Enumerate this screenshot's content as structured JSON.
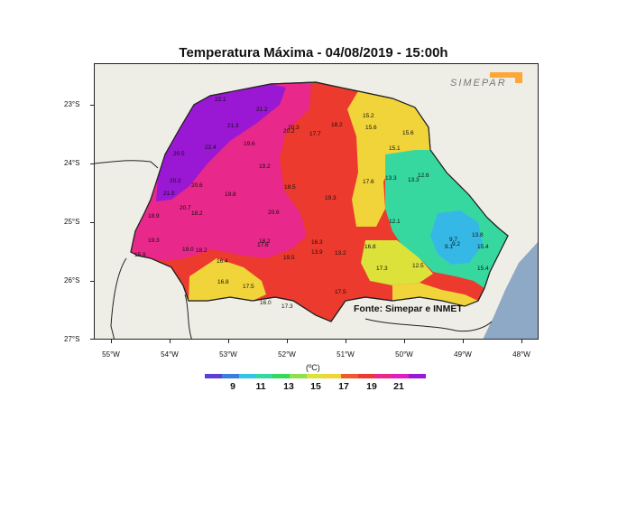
{
  "title": "Temperatura Máxima - 04/08/2019 - 15:00h",
  "source_text": "Fonte: Simepar e INMET",
  "logo_text": "SIMEPAR",
  "unit_label": "(ºC)",
  "lat_labels": [
    "23°S",
    "24°S",
    "25°S",
    "26°S",
    "27°S"
  ],
  "lon_labels": [
    "55°W",
    "54°W",
    "53°W",
    "52°W",
    "51°W",
    "50°W",
    "49°W",
    "48°W"
  ],
  "colorbar": {
    "ticks": [
      "9",
      "11",
      "13",
      "15",
      "17",
      "19",
      "21"
    ],
    "colors": [
      "#5b3fd6",
      "#3a7fe0",
      "#35c3e6",
      "#37d8a0",
      "#36d85c",
      "#8fe04a",
      "#dce23a",
      "#f0d43a",
      "#ef5a2c",
      "#ec3a2e",
      "#e8288a",
      "#e01fc0",
      "#9a17d4"
    ]
  },
  "station_values": [
    {
      "value": "22.1",
      "zone": "purple"
    },
    {
      "value": "21.2",
      "zone": "purple"
    },
    {
      "value": "21.3",
      "zone": "magenta"
    },
    {
      "value": "19.6",
      "zone": "magenta"
    },
    {
      "value": "22.4",
      "zone": "magenta"
    },
    {
      "value": "20.5",
      "zone": "purple"
    },
    {
      "value": "19.2",
      "zone": "magenta"
    },
    {
      "value": "20.2",
      "zone": "magenta"
    },
    {
      "value": "20.3",
      "zone": "magenta"
    },
    {
      "value": "18.2",
      "zone": "red"
    },
    {
      "value": "17.7",
      "zone": "red"
    },
    {
      "value": "15.2",
      "zone": "yellow"
    },
    {
      "value": "15.6",
      "zone": "yellow"
    },
    {
      "value": "15.6",
      "zone": "yellow"
    },
    {
      "value": "15.1",
      "zone": "yellow"
    },
    {
      "value": "12.6",
      "zone": "green"
    },
    {
      "value": "13.3",
      "zone": "green"
    },
    {
      "value": "17.6",
      "zone": "yellow"
    },
    {
      "value": "20.2",
      "zone": "magenta"
    },
    {
      "value": "20.6",
      "zone": "magenta"
    },
    {
      "value": "21.5",
      "zone": "purple"
    },
    {
      "value": "19.8",
      "zone": "magenta"
    },
    {
      "value": "18.5",
      "zone": "red"
    },
    {
      "value": "19.3",
      "zone": "red"
    },
    {
      "value": "20.7",
      "zone": "magenta"
    },
    {
      "value": "18.2",
      "zone": "magenta"
    },
    {
      "value": "18.9",
      "zone": "magenta"
    },
    {
      "value": "20.6",
      "zone": "magenta"
    },
    {
      "value": "12.1",
      "zone": "green"
    },
    {
      "value": "9.7",
      "zone": "blue"
    },
    {
      "value": "9.2",
      "zone": "blue"
    },
    {
      "value": "9.1",
      "zone": "blue"
    },
    {
      "value": "13.8",
      "zone": "green"
    },
    {
      "value": "15.4",
      "zone": "green"
    },
    {
      "value": "19.3",
      "zone": "magenta"
    },
    {
      "value": "16.3",
      "zone": "red"
    },
    {
      "value": "16.8",
      "zone": "yellow"
    },
    {
      "value": "19.0",
      "zone": "red"
    },
    {
      "value": "18.2",
      "zone": "red"
    },
    {
      "value": "18.2",
      "zone": "magenta"
    },
    {
      "value": "17.6",
      "zone": "red"
    },
    {
      "value": "13.9",
      "zone": "yellow"
    },
    {
      "value": "13.2",
      "zone": "green"
    },
    {
      "value": "16.4",
      "zone": "yellow"
    },
    {
      "value": "19.5",
      "zone": "magenta"
    },
    {
      "value": "17.3",
      "zone": "yellow"
    },
    {
      "value": "12.5",
      "zone": "green"
    },
    {
      "value": "15.4",
      "zone": "green"
    },
    {
      "value": "16.8",
      "zone": "yellow"
    },
    {
      "value": "17.5",
      "zone": "yellow"
    },
    {
      "value": "16.0",
      "zone": "red"
    },
    {
      "value": "17.3",
      "zone": "red"
    },
    {
      "value": "17.5",
      "zone": "yellow"
    },
    {
      "value": "15.9",
      "zone": "magenta"
    },
    {
      "value": "13.3",
      "zone": "green"
    }
  ]
}
